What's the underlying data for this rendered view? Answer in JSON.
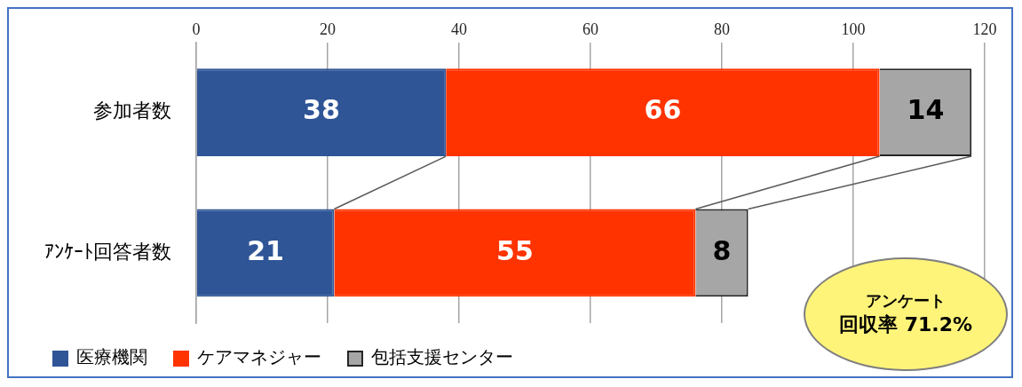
{
  "chart_data": {
    "type": "bar",
    "orientation": "horizontal",
    "stacked": true,
    "categories": [
      "参加者数",
      "ｱﾝｹｰﾄ回答者数"
    ],
    "series": [
      {
        "name": "医療機関",
        "color": "#2f5597",
        "values": [
          38,
          21
        ]
      },
      {
        "name": "ケアマネジャー",
        "color": "#ff3300",
        "values": [
          66,
          55
        ]
      },
      {
        "name": "包括支援センター",
        "color": "#a6a6a6",
        "values": [
          14,
          8
        ]
      }
    ],
    "xlim": [
      0,
      120
    ],
    "xticks": [
      0,
      20,
      40,
      60,
      80,
      100,
      120
    ],
    "grid": "x",
    "legend": "bottom",
    "data_labels": true,
    "annotations": [
      "アンケート",
      "回収率 71.2%"
    ]
  }
}
